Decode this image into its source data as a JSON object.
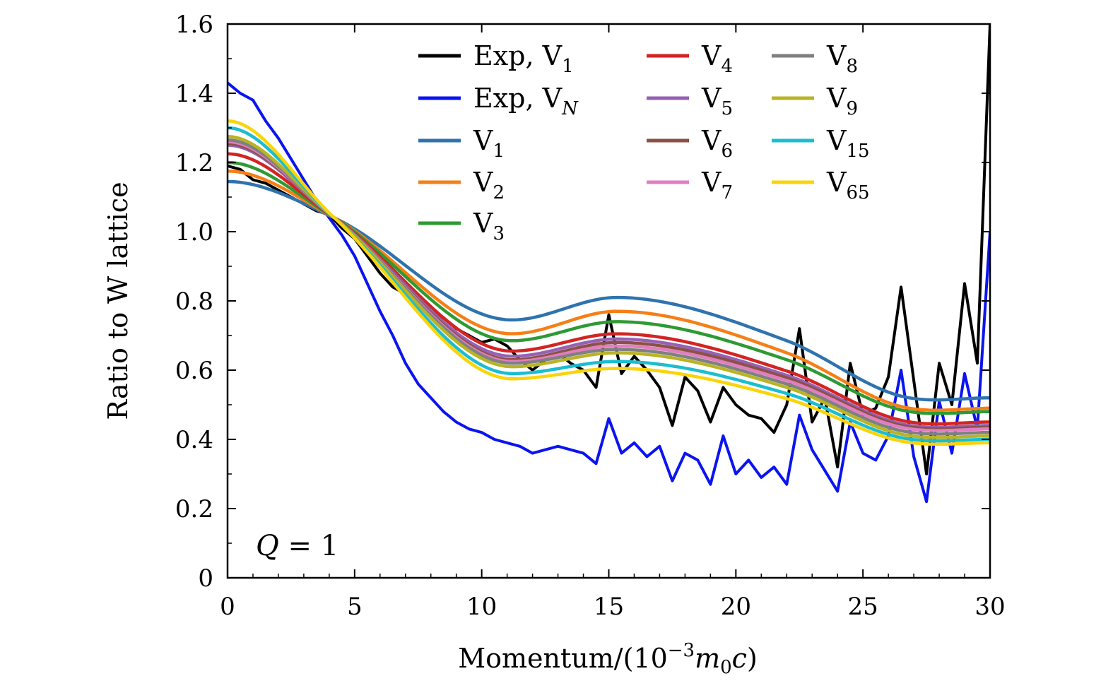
{
  "chart_data": {
    "type": "line",
    "title": "",
    "xlabel": "Momentum/(10",
    "xlabel_sup": "−3",
    "xlabel_m": "m",
    "xlabel_m_sub": "0",
    "xlabel_c": "c",
    "xlabel_close": ")",
    "ylabel": "Ratio to W lattice",
    "xlim": [
      0,
      30
    ],
    "ylim": [
      0,
      1.6
    ],
    "xticks": [
      0,
      5,
      10,
      15,
      20,
      25,
      30
    ],
    "xtick_labels": [
      "0",
      "5",
      "10",
      "15",
      "20",
      "25",
      "30"
    ],
    "yticks": [
      0,
      0.2,
      0.4,
      0.6,
      0.8,
      1.0,
      1.2,
      1.4,
      1.6
    ],
    "ytick_labels": [
      "0",
      "0.2",
      "0.4",
      "0.6",
      "0.8",
      "1.0",
      "1.2",
      "1.4",
      "1.6"
    ],
    "grid": false,
    "legend_position": "top-right",
    "annotation": {
      "var": "Q",
      "eq": " = 1"
    },
    "series": [
      {
        "name": "Exp, V",
        "sub": "1",
        "color": "#000000",
        "kind": "exp",
        "x": [
          0,
          0.5,
          1,
          1.5,
          2,
          2.5,
          3,
          3.5,
          4,
          4.5,
          5,
          5.5,
          6,
          6.5,
          7,
          7.5,
          8,
          8.5,
          9,
          9.5,
          10,
          10.5,
          11,
          11.5,
          12,
          12.5,
          13,
          13.5,
          14,
          14.5,
          15,
          15.5,
          16,
          16.5,
          17,
          17.5,
          18,
          18.5,
          19,
          19.5,
          20,
          20.5,
          21,
          21.5,
          22,
          22.5,
          23,
          23.5,
          24,
          24.5,
          25,
          25.5,
          26,
          26.5,
          27,
          27.5,
          28,
          28.5,
          29,
          29.5,
          30
        ],
        "y": [
          1.19,
          1.18,
          1.15,
          1.14,
          1.12,
          1.1,
          1.08,
          1.06,
          1.05,
          1.01,
          0.98,
          0.93,
          0.88,
          0.84,
          0.82,
          0.79,
          0.77,
          0.75,
          0.72,
          0.7,
          0.68,
          0.69,
          0.67,
          0.63,
          0.6,
          0.63,
          0.65,
          0.62,
          0.6,
          0.55,
          0.76,
          0.59,
          0.64,
          0.6,
          0.55,
          0.44,
          0.58,
          0.54,
          0.45,
          0.55,
          0.5,
          0.47,
          0.46,
          0.42,
          0.5,
          0.72,
          0.45,
          0.52,
          0.32,
          0.62,
          0.47,
          0.49,
          0.58,
          0.84,
          0.57,
          0.3,
          0.62,
          0.5,
          0.85,
          0.62,
          1.6
        ]
      },
      {
        "name": "Exp, V",
        "sub": "N",
        "sub_italic": true,
        "color": "#0b14f0",
        "kind": "exp",
        "x": [
          0,
          0.5,
          1,
          1.5,
          2,
          2.5,
          3,
          3.5,
          4,
          4.5,
          5,
          5.5,
          6,
          6.5,
          7,
          7.5,
          8,
          8.5,
          9,
          9.5,
          10,
          10.5,
          11,
          11.5,
          12,
          12.5,
          13,
          13.5,
          14,
          14.5,
          15,
          15.5,
          16,
          16.5,
          17,
          17.5,
          18,
          18.5,
          19,
          19.5,
          20,
          20.5,
          21,
          21.5,
          22,
          22.5,
          23,
          23.5,
          24,
          24.5,
          25,
          25.5,
          26,
          26.5,
          27,
          27.5,
          28,
          28.5,
          29,
          29.5,
          30
        ],
        "y": [
          1.43,
          1.4,
          1.38,
          1.32,
          1.27,
          1.21,
          1.15,
          1.09,
          1.04,
          0.99,
          0.93,
          0.85,
          0.77,
          0.7,
          0.62,
          0.56,
          0.52,
          0.48,
          0.45,
          0.43,
          0.42,
          0.4,
          0.39,
          0.38,
          0.36,
          0.37,
          0.38,
          0.37,
          0.36,
          0.33,
          0.46,
          0.36,
          0.39,
          0.35,
          0.38,
          0.28,
          0.36,
          0.34,
          0.27,
          0.41,
          0.3,
          0.34,
          0.29,
          0.32,
          0.27,
          0.47,
          0.37,
          0.31,
          0.25,
          0.45,
          0.36,
          0.34,
          0.41,
          0.6,
          0.35,
          0.22,
          0.51,
          0.36,
          0.59,
          0.43,
          1.0
        ]
      },
      {
        "name": "V",
        "sub": "1",
        "color": "#2f73ae",
        "kind": "model",
        "params": [
          1.145,
          0.81,
          0.745,
          0.52
        ]
      },
      {
        "name": "V",
        "sub": "2",
        "color": "#f57f17",
        "kind": "model",
        "params": [
          1.175,
          0.77,
          0.705,
          0.49
        ]
      },
      {
        "name": "V",
        "sub": "3",
        "color": "#2e9a33",
        "kind": "model",
        "params": [
          1.2,
          0.74,
          0.685,
          0.48
        ]
      },
      {
        "name": "V",
        "sub": "4",
        "color": "#d32422",
        "kind": "model",
        "params": [
          1.225,
          0.705,
          0.655,
          0.45
        ]
      },
      {
        "name": "V",
        "sub": "5",
        "color": "#9561b5",
        "kind": "model",
        "params": [
          1.25,
          0.69,
          0.64,
          0.44
        ]
      },
      {
        "name": "V",
        "sub": "6",
        "color": "#8c5144",
        "kind": "model",
        "params": [
          1.255,
          0.68,
          0.63,
          0.435
        ]
      },
      {
        "name": "V",
        "sub": "7",
        "color": "#e07ec0",
        "kind": "model",
        "params": [
          1.26,
          0.67,
          0.625,
          0.43
        ]
      },
      {
        "name": "V",
        "sub": "8",
        "color": "#808080",
        "kind": "model",
        "params": [
          1.265,
          0.66,
          0.62,
          0.42
        ]
      },
      {
        "name": "V",
        "sub": "9",
        "color": "#b8b425",
        "kind": "model",
        "params": [
          1.275,
          0.65,
          0.61,
          0.41
        ]
      },
      {
        "name": "V",
        "sub": "15",
        "color": "#1bbdd0",
        "kind": "model",
        "params": [
          1.3,
          0.625,
          0.59,
          0.4
        ]
      },
      {
        "name": "V",
        "sub": "65",
        "color": "#f9d40a",
        "kind": "model",
        "params": [
          1.32,
          0.605,
          0.575,
          0.39
        ]
      }
    ]
  }
}
